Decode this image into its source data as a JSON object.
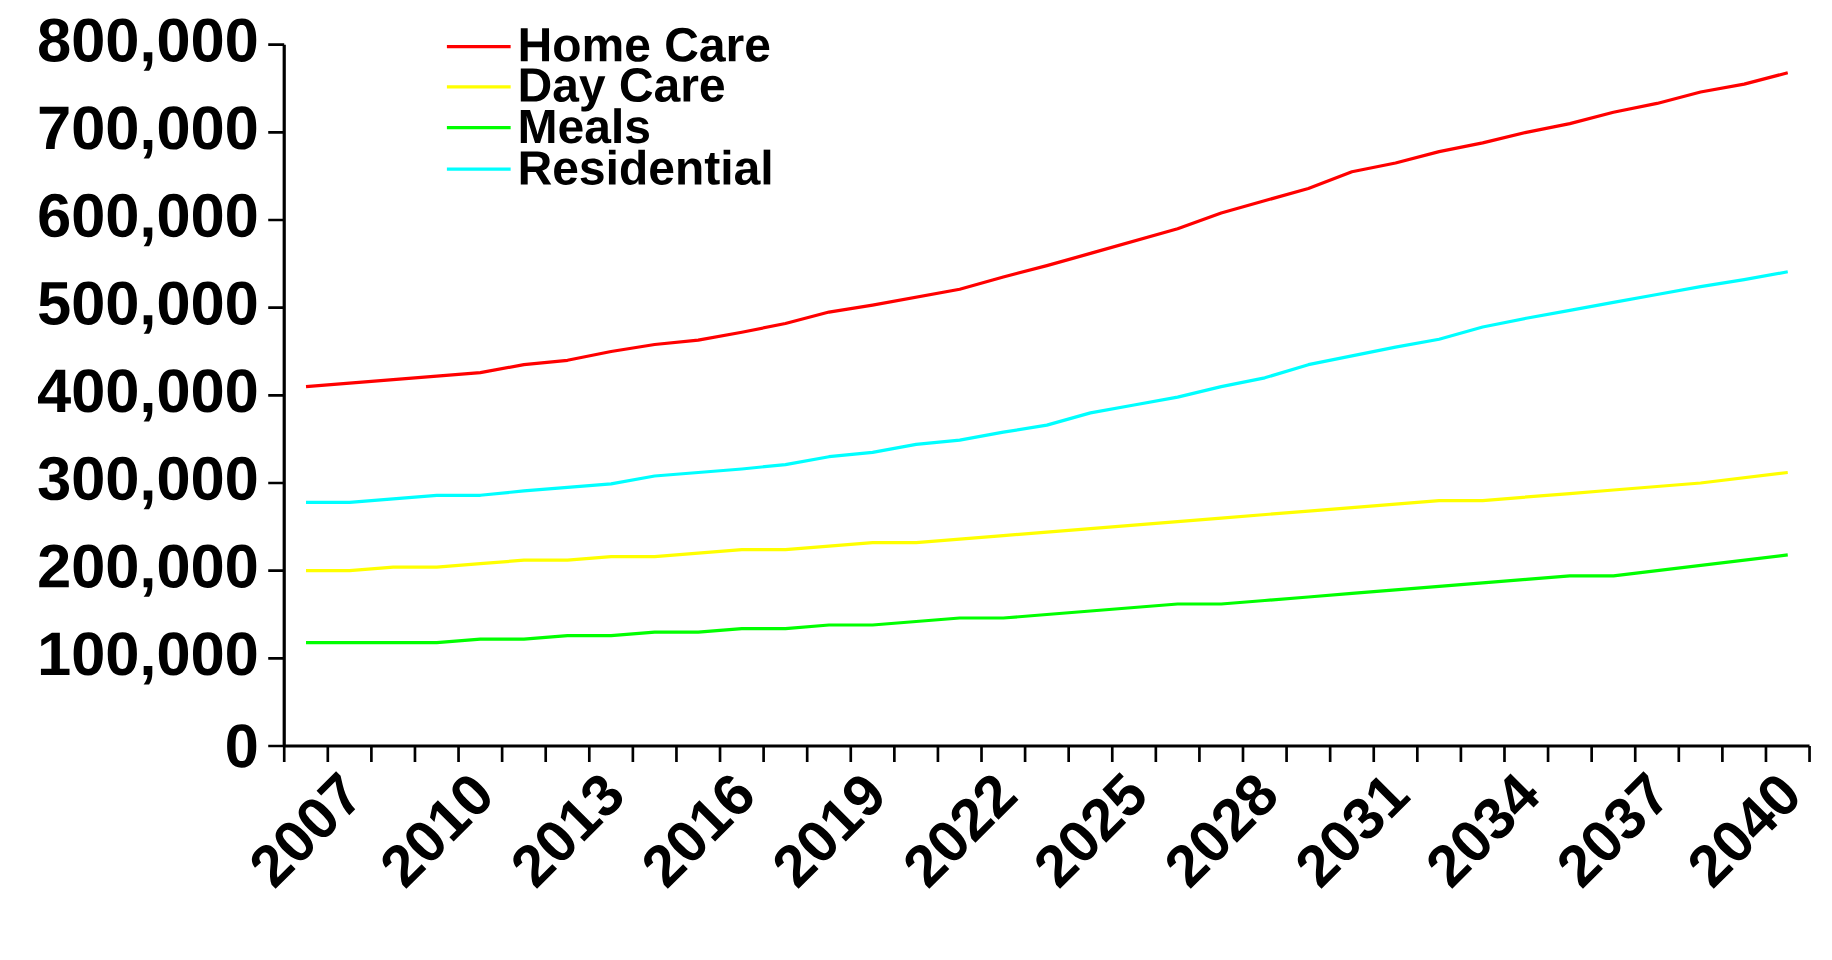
{
  "chart_data": {
    "type": "line",
    "categories": [
      "2007",
      null,
      null,
      "2010",
      null,
      null,
      "2013",
      null,
      null,
      "2016",
      null,
      null,
      "2019",
      null,
      null,
      "2022",
      null,
      null,
      "2025",
      null,
      null,
      "2028",
      null,
      null,
      "2031",
      null,
      null,
      "2034",
      null,
      null,
      "2037",
      null,
      null,
      "2040",
      null
    ],
    "series": [
      {
        "name": "Home Care",
        "color": "#ff0000",
        "values": [
          410000,
          414000,
          418000,
          422000,
          426000,
          435000,
          440000,
          450000,
          458000,
          463000,
          472000,
          482000,
          495000,
          503000,
          512000,
          521000,
          535000,
          548000,
          562000,
          576000,
          590000,
          608000,
          622000,
          636000,
          655000,
          665000,
          678000,
          688000,
          700000,
          710000,
          723000,
          733000,
          746000,
          755000,
          768000
        ]
      },
      {
        "name": "Day Care",
        "color": "#ffff00",
        "values": [
          200000,
          200000,
          204000,
          204000,
          208000,
          212000,
          212000,
          216000,
          216000,
          220000,
          224000,
          224000,
          228000,
          232000,
          232000,
          236000,
          240000,
          244000,
          248000,
          252000,
          256000,
          260000,
          264000,
          268000,
          272000,
          276000,
          280000,
          280000,
          284000,
          288000,
          292000,
          296000,
          300000,
          306000,
          312000
        ]
      },
      {
        "name": "Meals",
        "color": "#00ff00",
        "values": [
          118000,
          118000,
          118000,
          118000,
          122000,
          122000,
          126000,
          126000,
          130000,
          130000,
          134000,
          134000,
          138000,
          138000,
          142000,
          146000,
          146000,
          150000,
          154000,
          158000,
          162000,
          162000,
          166000,
          170000,
          174000,
          178000,
          182000,
          186000,
          190000,
          194000,
          194000,
          200000,
          206000,
          212000,
          218000
        ]
      },
      {
        "name": "Residential",
        "color": "#00ffff",
        "values": [
          278000,
          278000,
          282000,
          286000,
          286000,
          291000,
          295000,
          299000,
          308000,
          312000,
          316000,
          321000,
          330000,
          335000,
          344000,
          349000,
          358000,
          366000,
          380000,
          389000,
          398000,
          410000,
          420000,
          435000,
          445000,
          455000,
          464000,
          478000,
          488000,
          497000,
          506000,
          515000,
          524000,
          532000,
          541000
        ]
      }
    ],
    "ylim": [
      0,
      800000
    ],
    "yticks": [
      0,
      {
        "value": 100000,
        "label": "100,000"
      },
      {
        "value": 200000,
        "label": "200,000"
      },
      {
        "value": 300000,
        "label": "300,000"
      },
      {
        "value": 400000,
        "label": "400,000"
      },
      {
        "value": 500000,
        "label": "500,000"
      },
      {
        "value": 600000,
        "label": "600,000"
      },
      {
        "value": 700000,
        "label": "700,000"
      },
      {
        "value": 800000,
        "label": "800,000"
      }
    ],
    "legend": "top left",
    "marker": "none",
    "line_style": "solid",
    "grid": false
  }
}
